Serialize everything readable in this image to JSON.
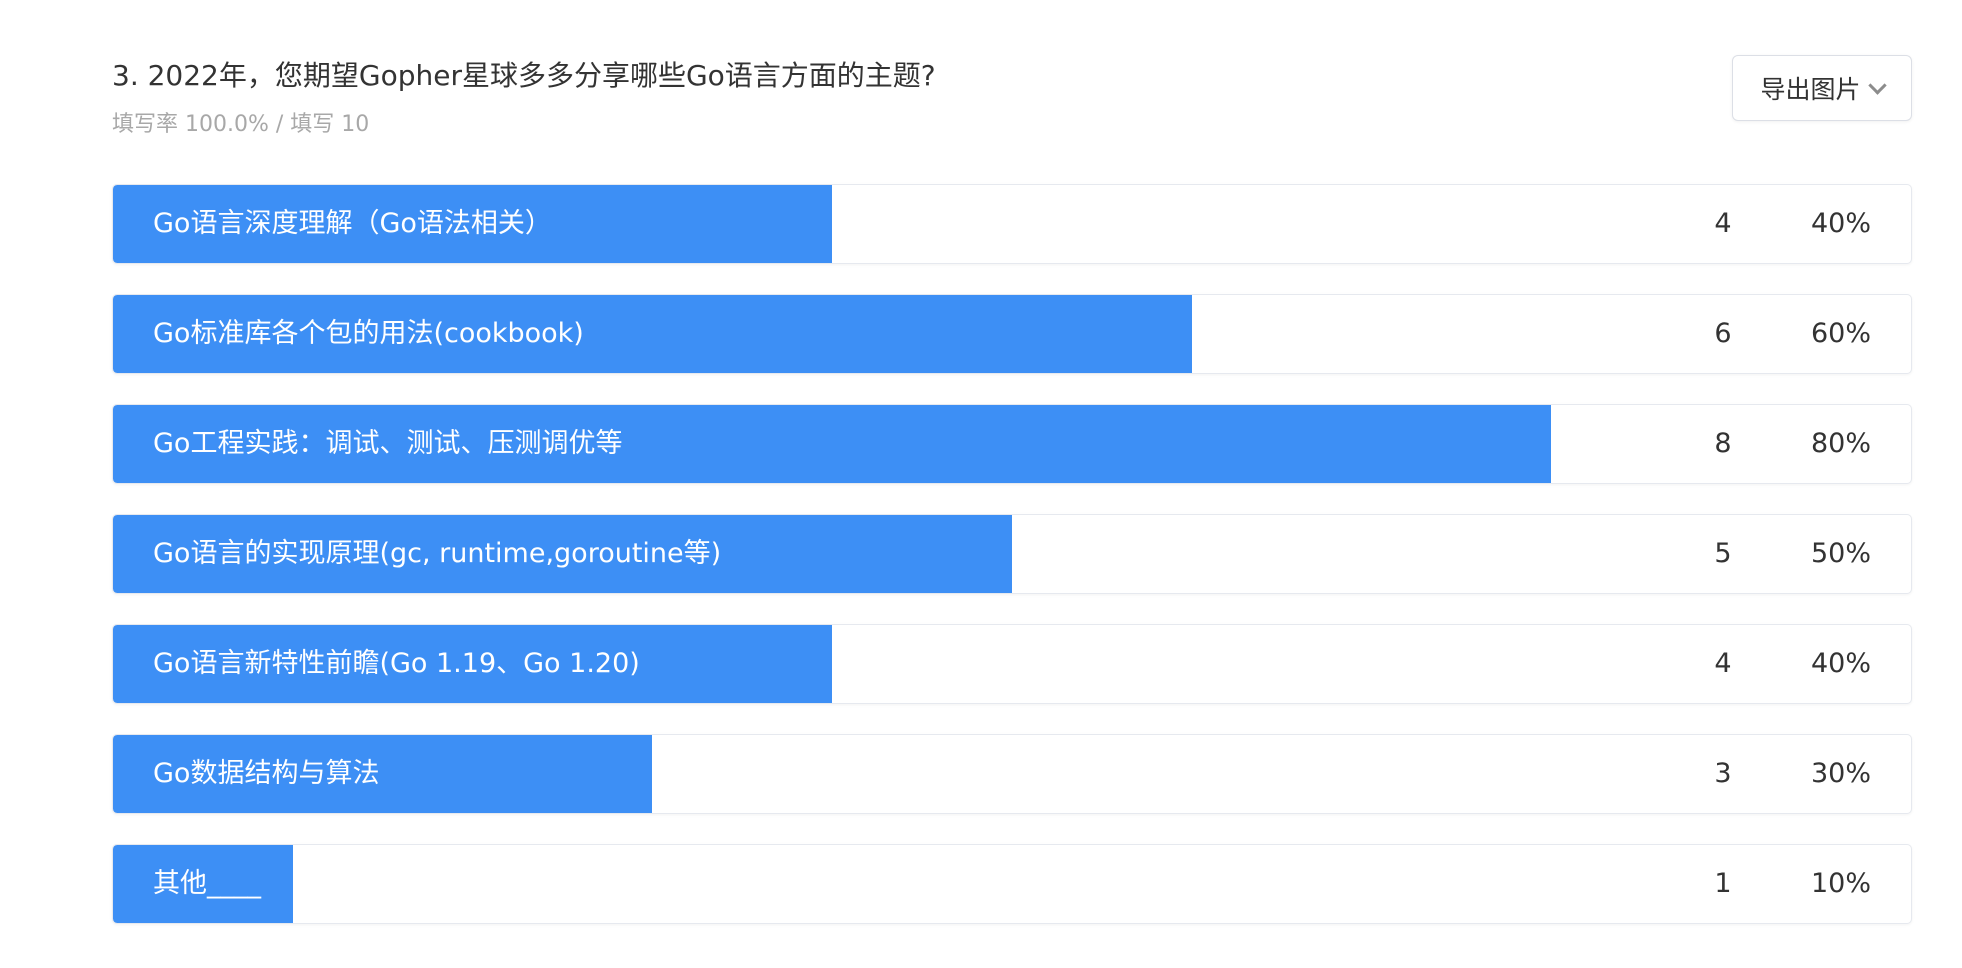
{
  "question": {
    "title": "3. 2022年，您期望Gopher星球多多分享哪些Go语言方面的主题?",
    "meta": "填写率 100.0% / 填写 10"
  },
  "toolbar": {
    "export_label": "导出图片"
  },
  "colors": {
    "bar": "#3d8ff5",
    "text": "#333333",
    "meta_text": "#a8a8a8"
  },
  "chart_data": {
    "type": "bar",
    "orientation": "horizontal",
    "categories": [
      "Go语言深度理解（Go语法相关）",
      "Go标准库各个包的用法(cookbook)",
      "Go工程实践：调试、测试、压测调优等",
      "Go语言的实现原理(gc, runtime,goroutine等)",
      "Go语言新特性前瞻(Go 1.19、Go 1.20)",
      "Go数据结构与算法",
      "其他____"
    ],
    "values": [
      4,
      6,
      8,
      5,
      4,
      3,
      1
    ],
    "percent_labels": [
      "40%",
      "60%",
      "80%",
      "50%",
      "40%",
      "30%",
      "10%"
    ],
    "percent_values": [
      40,
      60,
      80,
      50,
      40,
      30,
      10
    ],
    "xlim": [
      0,
      100
    ]
  }
}
